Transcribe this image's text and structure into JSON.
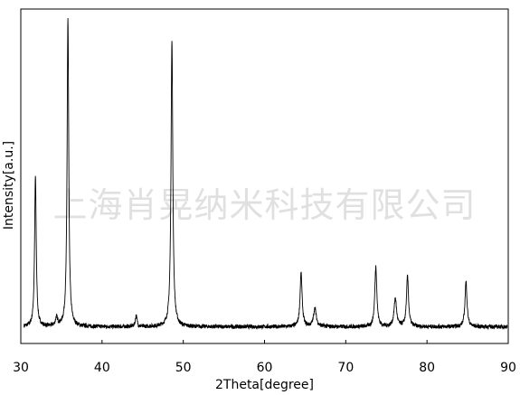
{
  "watermark": "上海肖晃纳米科技有限公司",
  "chart_data": {
    "type": "line",
    "title": "",
    "xlabel": "2Theta[degree]",
    "ylabel": "Intensity[a.u.]",
    "xlim": [
      30,
      90
    ],
    "ylim": [
      0,
      100
    ],
    "xticks": [
      30,
      40,
      50,
      60,
      70,
      80,
      90
    ],
    "yticks": [],
    "grid": false,
    "legend": "none",
    "line_color": "#000000",
    "baseline": 5,
    "noise": 0.6,
    "peaks": [
      {
        "x": 31.8,
        "y": 45,
        "w": 0.12
      },
      {
        "x": 34.4,
        "y": 2.5,
        "w": 0.15
      },
      {
        "x": 35.8,
        "y": 92,
        "w": 0.12
      },
      {
        "x": 44.2,
        "y": 3.5,
        "w": 0.12
      },
      {
        "x": 48.6,
        "y": 86,
        "w": 0.13
      },
      {
        "x": 64.5,
        "y": 16,
        "w": 0.15
      },
      {
        "x": 66.2,
        "y": 5.5,
        "w": 0.2
      },
      {
        "x": 73.7,
        "y": 18,
        "w": 0.15
      },
      {
        "x": 76.1,
        "y": 8.5,
        "w": 0.18
      },
      {
        "x": 77.6,
        "y": 15,
        "w": 0.15
      },
      {
        "x": 84.8,
        "y": 13.5,
        "w": 0.15
      }
    ]
  }
}
